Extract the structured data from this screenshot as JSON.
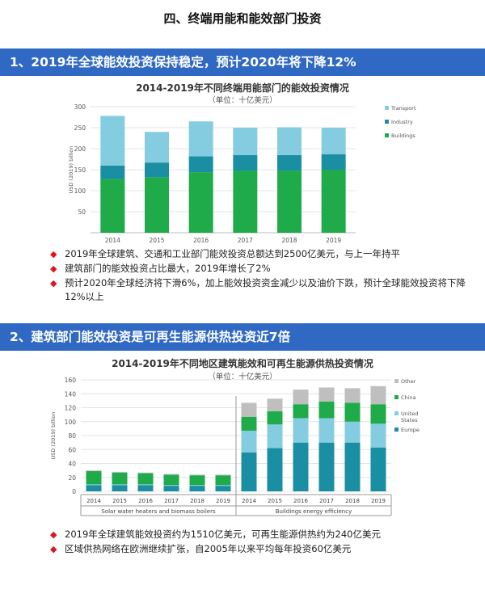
{
  "page": {
    "title": "四、终端用能和能效部门投资"
  },
  "section1": {
    "banner": "1、2019年全球能效投资保持稳定，预计2020年将下降12%",
    "chart_title": "2014-2019年不同终端用能部门的能效投资情况",
    "chart_unit": "（单位：十亿美元）",
    "bullets": [
      "2019年全球建筑、交通和工业部门能效投资总额达到2500亿美元，与上一年持平",
      "建筑部门的能效投资占比最大，2019年增长了2%",
      "预计2020年全球经济将下滑6%，加上能效投资资金减少以及油价下跌，预计全球能效投资将下降12%以上"
    ],
    "bullet_marker": "◆"
  },
  "section2": {
    "banner": "2、建筑部门能效投资是可再生能源供热投资近7倍",
    "chart_title": "2014-2019年不同地区建筑能效和可再生能源供热投资情况",
    "chart_unit": "（单位：十亿美元）",
    "bullets": [
      "2019年全球建筑能效投资约为1510亿美元，可再生能源供热约为240亿美元",
      "区域供热网络在欧洲继续扩张，自2005年以来平均每年投资60亿美元"
    ],
    "bullet_marker": "◆"
  },
  "colors": {
    "banner": "#2f69c3",
    "buildings": "#1fab4a",
    "industry": "#1a8fa3",
    "transport": "#84cde0",
    "europe": "#1a8fa3",
    "united_states": "#84cde0",
    "china": "#1fab4a",
    "other": "#bfbfbf",
    "bullet": "#e0141e"
  },
  "chart_data": [
    {
      "type": "bar",
      "stacked": true,
      "categories": [
        "2014",
        "2015",
        "2016",
        "2017",
        "2018",
        "2019"
      ],
      "ylabel": "USD (2019) billion",
      "ylim": [
        0,
        300
      ],
      "yticks": [
        50,
        100,
        150,
        200,
        250,
        300
      ],
      "legend_position": "right",
      "series": [
        {
          "name": "Buildings",
          "color": "#1fab4a",
          "values": [
            128,
            132,
            144,
            148,
            148,
            150
          ]
        },
        {
          "name": "Industry",
          "color": "#1a8fa3",
          "values": [
            32,
            35,
            38,
            37,
            37,
            37
          ]
        },
        {
          "name": "Transport",
          "color": "#84cde0",
          "values": [
            118,
            73,
            83,
            65,
            66,
            63
          ]
        }
      ]
    },
    {
      "type": "bar",
      "stacked": true,
      "categories": [
        "2014",
        "2015",
        "2016",
        "2017",
        "2018",
        "2019",
        "2014",
        "2015",
        "2016",
        "2017",
        "2018",
        "2019"
      ],
      "groups": [
        {
          "label": "Solar water heaters and biomass boilers",
          "count": 6
        },
        {
          "label": "Buildings energy efficiency",
          "count": 6
        }
      ],
      "ylabel": "USD (2019) billion",
      "ylim": [
        0,
        160
      ],
      "yticks": [
        0,
        20,
        40,
        60,
        80,
        100,
        120,
        140,
        160
      ],
      "legend_position": "right",
      "series": [
        {
          "name": "Europe",
          "color": "#1a8fa3",
          "values": [
            9,
            9,
            9,
            8,
            8,
            8,
            56,
            62,
            70,
            70,
            70,
            63
          ]
        },
        {
          "name": "United States",
          "color": "#84cde0",
          "values": [
            1,
            1,
            1,
            1,
            1,
            1,
            31,
            34,
            35,
            35,
            30,
            34
          ]
        },
        {
          "name": "China",
          "color": "#1fab4a",
          "values": [
            19,
            17,
            16,
            15,
            14,
            14,
            20,
            19,
            20,
            24,
            27,
            28
          ]
        },
        {
          "name": "Other",
          "color": "#bfbfbf",
          "values": [
            1,
            1,
            1,
            1,
            1,
            1,
            20,
            18,
            21,
            20,
            21,
            26
          ]
        }
      ]
    }
  ]
}
